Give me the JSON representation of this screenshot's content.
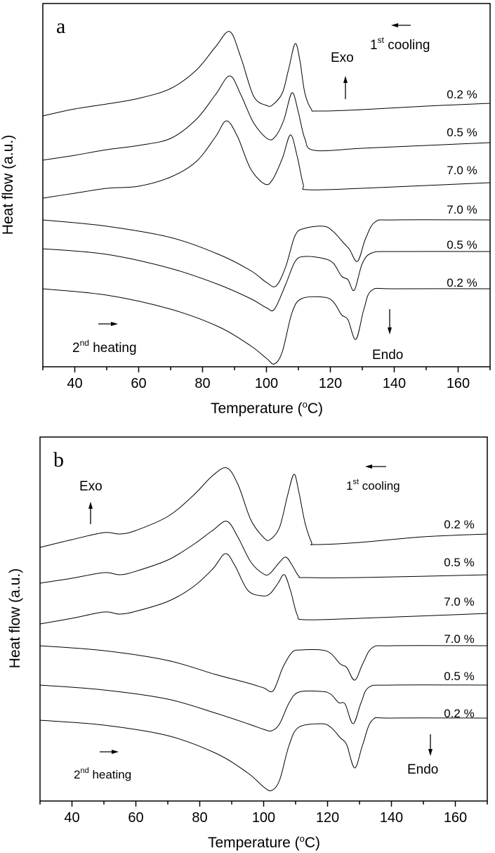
{
  "chart_data": [
    {
      "type": "line",
      "panel_label": "a",
      "xlabel": {
        "pre": "Temperature (",
        "sup": "o",
        "post": "C)"
      },
      "ylabel": "Heat flow (a.u.)",
      "xlim": [
        30,
        170
      ],
      "ylim": [
        0,
        51.7
      ],
      "xticks": [
        "40",
        "60",
        "80",
        "100",
        "120",
        "140",
        "160"
      ],
      "y_ticks_shown": false,
      "grid": false,
      "annotations": {
        "exo": "Exo",
        "endo": "Endo",
        "cooling": {
          "num": "1",
          "sup": "st",
          "text": " cooling"
        },
        "heating": {
          "num": "2",
          "sup": "nd",
          "text": " heating"
        }
      },
      "series": [
        {
          "name": "0.2 %",
          "segment": "1st cooling",
          "points": [
            [
              30,
              35.7
            ],
            [
              40,
              36.7
            ],
            [
              50,
              37.4
            ],
            [
              60,
              38.2
            ],
            [
              70,
              39.6
            ],
            [
              78,
              42.2
            ],
            [
              84,
              45.5
            ],
            [
              88.5,
              47.7
            ],
            [
              92,
              44
            ],
            [
              96,
              38.5
            ],
            [
              100,
              37.2
            ],
            [
              102,
              37.3
            ],
            [
              105,
              39
            ],
            [
              107,
              42.5
            ],
            [
              109,
              46
            ],
            [
              110.5,
              43.5
            ],
            [
              112,
              39
            ],
            [
              114,
              36.7
            ],
            [
              116,
              36.4
            ],
            [
              130,
              36.6
            ],
            [
              150,
              37.1
            ],
            [
              170,
              37.5
            ]
          ]
        },
        {
          "name": "0.5 %",
          "segment": "1st cooling",
          "points": [
            [
              30,
              29.4
            ],
            [
              40,
              30.1
            ],
            [
              50,
              30.9
            ],
            [
              60,
              31.5
            ],
            [
              70,
              32.5
            ],
            [
              78,
              35.2
            ],
            [
              84,
              38.7
            ],
            [
              88.5,
              41.4
            ],
            [
              92,
              38.7
            ],
            [
              96,
              34.7
            ],
            [
              100.5,
              32.4
            ],
            [
              103,
              32.9
            ],
            [
              105.5,
              35.2
            ],
            [
              108,
              39
            ],
            [
              110,
              36.2
            ],
            [
              112,
              32.5
            ],
            [
              115,
              30.8
            ],
            [
              130,
              31.1
            ],
            [
              150,
              31.5
            ],
            [
              170,
              31.9
            ]
          ]
        },
        {
          "name": "7.0 %",
          "segment": "1st cooling",
          "points": [
            [
              30,
              24
            ],
            [
              40,
              24.7
            ],
            [
              50,
              25.4
            ],
            [
              60,
              25.7
            ],
            [
              70,
              27
            ],
            [
              78,
              29.2
            ],
            [
              84,
              32.7
            ],
            [
              87.5,
              35
            ],
            [
              91,
              32.7
            ],
            [
              95,
              28.2
            ],
            [
              99.5,
              26
            ],
            [
              102,
              26.7
            ],
            [
              105,
              29.7
            ],
            [
              107.5,
              33
            ],
            [
              109.5,
              30.2
            ],
            [
              111.5,
              26
            ],
            [
              113,
              25.2
            ],
            [
              130,
              25.4
            ],
            [
              150,
              25.8
            ],
            [
              170,
              26.2
            ]
          ]
        },
        {
          "name": "7.0 %",
          "segment": "2nd heating",
          "points": [
            [
              30,
              20.9
            ],
            [
              50,
              20
            ],
            [
              70,
              18.4
            ],
            [
              85,
              16
            ],
            [
              95,
              13.7
            ],
            [
              100,
              12
            ],
            [
              103,
              11.5
            ],
            [
              106,
              14.2
            ],
            [
              109,
              18.7
            ],
            [
              112,
              19.7
            ],
            [
              118,
              20
            ],
            [
              121,
              19.2
            ],
            [
              124,
              17.7
            ],
            [
              126,
              16.7
            ],
            [
              128.5,
              15
            ],
            [
              131,
              18.2
            ],
            [
              134,
              20.6
            ],
            [
              140,
              20.9
            ],
            [
              170,
              20.9
            ]
          ]
        },
        {
          "name": "0.5 %",
          "segment": "2nd heating",
          "points": [
            [
              30,
              16.8
            ],
            [
              50,
              16
            ],
            [
              70,
              14
            ],
            [
              85,
              11.7
            ],
            [
              95,
              9.7
            ],
            [
              100,
              8.4
            ],
            [
              102.5,
              8.2
            ],
            [
              106,
              11.7
            ],
            [
              109,
              15
            ],
            [
              112,
              15.7
            ],
            [
              118,
              15.4
            ],
            [
              121,
              14.7
            ],
            [
              123.5,
              12.9
            ],
            [
              125.5,
              12.4
            ],
            [
              127.5,
              10.9
            ],
            [
              130,
              14.7
            ],
            [
              133,
              16.2
            ],
            [
              140,
              16.4
            ],
            [
              170,
              16.4
            ]
          ]
        },
        {
          "name": "0.2 %",
          "segment": "2nd heating",
          "points": [
            [
              30,
              11.1
            ],
            [
              50,
              10.2
            ],
            [
              70,
              8.2
            ],
            [
              85,
              5.7
            ],
            [
              95,
              3
            ],
            [
              100,
              1.2
            ],
            [
              102.5,
              0.4
            ],
            [
              105,
              2.2
            ],
            [
              108,
              7.7
            ],
            [
              111,
              9.7
            ],
            [
              118,
              9.9
            ],
            [
              121,
              9.2
            ],
            [
              123.5,
              7.4
            ],
            [
              125.5,
              6.7
            ],
            [
              128,
              3.9
            ],
            [
              130.5,
              8.2
            ],
            [
              133,
              10.9
            ],
            [
              140,
              11.1
            ],
            [
              170,
              11.1
            ]
          ]
        }
      ]
    },
    {
      "type": "line",
      "panel_label": "b",
      "xlabel": {
        "pre": "Temperature (",
        "sup": "o",
        "post": "C)"
      },
      "ylabel": "Heat flow (a.u.)",
      "xlim": [
        30,
        170
      ],
      "ylim": [
        0,
        51.8
      ],
      "xticks": [
        "40",
        "60",
        "80",
        "100",
        "120",
        "140",
        "160"
      ],
      "y_ticks_shown": false,
      "grid": false,
      "annotations": {
        "exo": "Exo",
        "endo": "Endo",
        "cooling": {
          "num": "1",
          "sup": "st",
          "text": " cooling"
        },
        "heating": {
          "num": "2",
          "sup": "nd",
          "text": " heating"
        }
      },
      "series": [
        {
          "name": "0.2 %",
          "segment": "1st cooling",
          "points": [
            [
              30,
              36.1
            ],
            [
              40,
              37.2
            ],
            [
              50,
              38.2
            ],
            [
              55,
              38
            ],
            [
              60,
              38.5
            ],
            [
              70,
              40.5
            ],
            [
              78,
              43.5
            ],
            [
              84,
              46.3
            ],
            [
              88.5,
              47.4
            ],
            [
              92,
              45
            ],
            [
              96,
              40
            ],
            [
              100,
              37.5
            ],
            [
              102,
              37.2
            ],
            [
              105,
              39
            ],
            [
              107.5,
              43.5
            ],
            [
              109.5,
              46.5
            ],
            [
              111,
              44
            ],
            [
              113,
              39.5
            ],
            [
              115,
              36.8
            ],
            [
              116,
              36.5
            ],
            [
              130,
              36.8
            ],
            [
              150,
              37.6
            ],
            [
              170,
              38
            ]
          ]
        },
        {
          "name": "0.5 %",
          "segment": "1st cooling",
          "points": [
            [
              30,
              31
            ],
            [
              40,
              31.7
            ],
            [
              50,
              32.5
            ],
            [
              55,
              32.2
            ],
            [
              60,
              32.7
            ],
            [
              70,
              34.3
            ],
            [
              78,
              36.5
            ],
            [
              84,
              38.5
            ],
            [
              88.5,
              39.8
            ],
            [
              92,
              37.5
            ],
            [
              96,
              34
            ],
            [
              100,
              32.3
            ],
            [
              102,
              32.4
            ],
            [
              105,
              34
            ],
            [
              107,
              34.7
            ],
            [
              109,
              33.5
            ],
            [
              111,
              32
            ],
            [
              113,
              31.8
            ],
            [
              130,
              31.8
            ],
            [
              170,
              32.2
            ]
          ]
        },
        {
          "name": "7.0 %",
          "segment": "1st cooling",
          "points": [
            [
              30,
              25.2
            ],
            [
              40,
              26
            ],
            [
              50,
              26.9
            ],
            [
              55,
              26.6
            ],
            [
              60,
              27
            ],
            [
              70,
              28.4
            ],
            [
              78,
              30.5
            ],
            [
              84,
              33
            ],
            [
              88,
              35.2
            ],
            [
              91,
              33.5
            ],
            [
              95,
              30
            ],
            [
              99.5,
              29.2
            ],
            [
              102,
              29.5
            ],
            [
              104.5,
              31
            ],
            [
              106.5,
              32.2
            ],
            [
              108.5,
              29.8
            ],
            [
              110.5,
              26.5
            ],
            [
              113,
              25.8
            ],
            [
              130,
              26
            ],
            [
              170,
              26.7
            ]
          ]
        },
        {
          "name": "7.0 %",
          "segment": "2nd heating",
          "points": [
            [
              30,
              22.1
            ],
            [
              50,
              21.4
            ],
            [
              70,
              20
            ],
            [
              85,
              18
            ],
            [
              95,
              16.8
            ],
            [
              100,
              16.1
            ],
            [
              103,
              15.7
            ],
            [
              106,
              19
            ],
            [
              109,
              21.2
            ],
            [
              112,
              21.5
            ],
            [
              118,
              21.5
            ],
            [
              121,
              21
            ],
            [
              124,
              19.5
            ],
            [
              126,
              19
            ],
            [
              128.5,
              17.2
            ],
            [
              131,
              19.5
            ],
            [
              134,
              21.8
            ],
            [
              140,
              22.1
            ],
            [
              170,
              22.1
            ]
          ]
        },
        {
          "name": "0.5 %",
          "segment": "2nd heating",
          "points": [
            [
              30,
              16.5
            ],
            [
              50,
              15.8
            ],
            [
              70,
              14.5
            ],
            [
              85,
              12.5
            ],
            [
              95,
              11
            ],
            [
              100,
              10.2
            ],
            [
              102.5,
              10
            ],
            [
              105,
              11
            ],
            [
              108,
              14
            ],
            [
              111,
              15.5
            ],
            [
              118,
              15.6
            ],
            [
              121,
              15.2
            ],
            [
              123.5,
              14
            ],
            [
              125.5,
              13.8
            ],
            [
              128,
              11
            ],
            [
              130.5,
              14
            ],
            [
              133,
              16.2
            ],
            [
              140,
              16.5
            ],
            [
              170,
              16.5
            ]
          ]
        },
        {
          "name": "0.2 %",
          "segment": "2nd heating",
          "points": [
            [
              30,
              11.5
            ],
            [
              50,
              10.8
            ],
            [
              70,
              9.3
            ],
            [
              85,
              6.8
            ],
            [
              95,
              4
            ],
            [
              100,
              2
            ],
            [
              102.5,
              1.5
            ],
            [
              105,
              3
            ],
            [
              108,
              8
            ],
            [
              111,
              10.5
            ],
            [
              118,
              11
            ],
            [
              121,
              10.5
            ],
            [
              124,
              9
            ],
            [
              126,
              8
            ],
            [
              128.5,
              4.7
            ],
            [
              131,
              8
            ],
            [
              134,
              11.5
            ],
            [
              140,
              11.8
            ],
            [
              170,
              11.8
            ]
          ]
        }
      ]
    }
  ]
}
